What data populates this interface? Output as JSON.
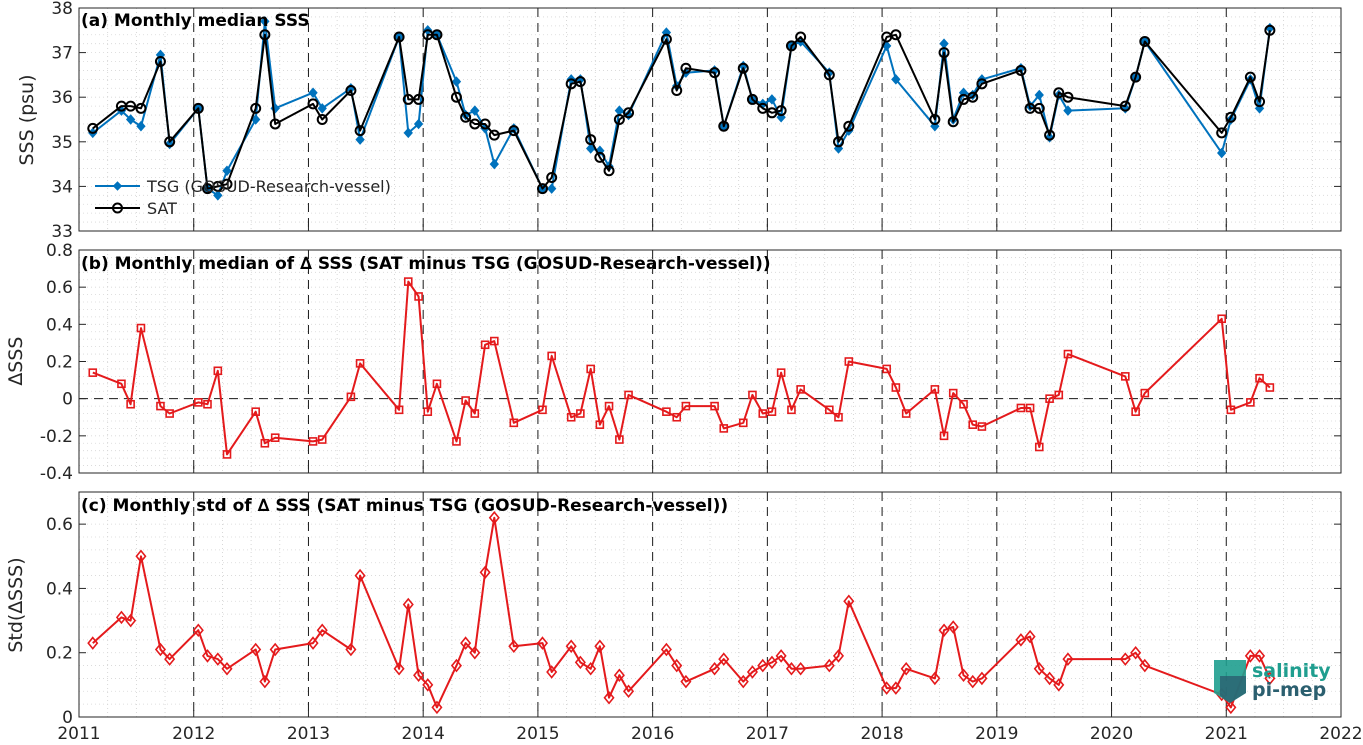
{
  "chart_data": [
    {
      "type": "line",
      "title": "(a) Monthly median SSS",
      "ylabel": "SSS (psu)",
      "ylim": [
        33,
        38
      ],
      "yticks": [
        33,
        34,
        35,
        36,
        37,
        38
      ],
      "xlim": [
        2011,
        2022
      ],
      "xticks": [
        2011,
        2012,
        2013,
        2014,
        2015,
        2016,
        2017,
        2018,
        2019,
        2020,
        2021,
        2022
      ],
      "grid": "dotted minor",
      "legend_position": "lower-left",
      "series": [
        {
          "name": "TSG (GOSUD-Research-vessel)",
          "color": "#0072bd",
          "marker": "diamond-filled",
          "x": [
            2011.12,
            2011.37,
            2011.45,
            2011.54,
            2011.71,
            2011.79,
            2012.04,
            2012.12,
            2012.21,
            2012.29,
            2012.54,
            2012.62,
            2012.71,
            2013.04,
            2013.12,
            2013.37,
            2013.45,
            2013.79,
            2013.87,
            2013.96,
            2014.04,
            2014.12,
            2014.29,
            2014.37,
            2014.45,
            2014.54,
            2014.62,
            2014.79,
            2015.04,
            2015.12,
            2015.29,
            2015.37,
            2015.46,
            2015.54,
            2015.62,
            2015.71,
            2015.79,
            2016.12,
            2016.21,
            2016.29,
            2016.54,
            2016.62,
            2016.79,
            2016.87,
            2016.96,
            2017.04,
            2017.12,
            2017.21,
            2017.29,
            2017.54,
            2017.62,
            2017.71,
            2018.04,
            2018.12,
            2018.46,
            2018.54,
            2018.62,
            2018.71,
            2018.79,
            2018.87,
            2019.21,
            2019.29,
            2019.37,
            2019.46,
            2019.54,
            2019.62,
            2020.12,
            2020.21,
            2020.29,
            2020.96,
            2021.04,
            2021.21,
            2021.29,
            2021.38
          ],
          "values": [
            35.2,
            35.7,
            35.5,
            35.35,
            36.95,
            34.95,
            35.75,
            33.95,
            33.8,
            34.35,
            35.5,
            37.7,
            35.75,
            36.1,
            35.75,
            36.2,
            35.05,
            37.35,
            35.2,
            35.4,
            37.5,
            37.4,
            36.35,
            35.6,
            35.7,
            35.3,
            34.5,
            35.3,
            33.95,
            33.95,
            36.4,
            36.4,
            34.85,
            34.8,
            34.45,
            35.7,
            35.6,
            37.45,
            36.25,
            36.55,
            36.6,
            35.35,
            36.7,
            35.95,
            35.85,
            35.95,
            35.55,
            37.15,
            37.25,
            36.55,
            34.85,
            35.25,
            37.15,
            36.4,
            35.35,
            37.2,
            35.5,
            36.1,
            36.05,
            36.4,
            36.65,
            35.8,
            36.05,
            35.1,
            36.05,
            35.7,
            35.75,
            36.45,
            37.25,
            34.75,
            35.5,
            36.4,
            35.75,
            37.55
          ]
        },
        {
          "name": "SAT",
          "color": "#000000",
          "marker": "circle-open",
          "x": [
            2011.12,
            2011.37,
            2011.45,
            2011.54,
            2011.71,
            2011.79,
            2012.04,
            2012.12,
            2012.21,
            2012.29,
            2012.54,
            2012.62,
            2012.71,
            2013.04,
            2013.12,
            2013.37,
            2013.45,
            2013.79,
            2013.87,
            2013.96,
            2014.04,
            2014.12,
            2014.29,
            2014.37,
            2014.45,
            2014.54,
            2014.62,
            2014.79,
            2015.04,
            2015.12,
            2015.29,
            2015.37,
            2015.46,
            2015.54,
            2015.62,
            2015.71,
            2015.79,
            2016.12,
            2016.21,
            2016.29,
            2016.54,
            2016.62,
            2016.79,
            2016.87,
            2016.96,
            2017.04,
            2017.12,
            2017.21,
            2017.29,
            2017.54,
            2017.62,
            2017.71,
            2018.04,
            2018.12,
            2018.46,
            2018.54,
            2018.62,
            2018.71,
            2018.79,
            2018.87,
            2019.21,
            2019.29,
            2019.37,
            2019.46,
            2019.54,
            2019.62,
            2020.12,
            2020.21,
            2020.29,
            2020.96,
            2021.04,
            2021.21,
            2021.29,
            2021.38
          ],
          "values": [
            35.3,
            35.8,
            35.8,
            35.75,
            36.8,
            35.0,
            35.75,
            33.95,
            34.0,
            34.05,
            35.75,
            37.4,
            35.4,
            35.85,
            35.5,
            36.15,
            35.25,
            37.35,
            35.95,
            35.95,
            37.4,
            37.4,
            36.0,
            35.55,
            35.4,
            35.4,
            35.15,
            35.25,
            33.95,
            34.2,
            36.3,
            36.35,
            35.05,
            34.65,
            34.35,
            35.5,
            35.65,
            37.3,
            36.15,
            36.65,
            36.55,
            35.35,
            36.65,
            35.95,
            35.75,
            35.65,
            35.7,
            37.15,
            37.35,
            36.5,
            35.0,
            35.35,
            37.35,
            37.4,
            35.5,
            37.0,
            35.45,
            35.95,
            36.0,
            36.3,
            36.6,
            35.75,
            35.75,
            35.15,
            36.1,
            36.0,
            35.8,
            36.45,
            37.25,
            35.2,
            35.55,
            36.45,
            35.9,
            37.5
          ]
        }
      ]
    },
    {
      "type": "line",
      "title": "(b) Monthly median of ∆ SSS (SAT minus TSG (GOSUD-Research-vessel))",
      "ylabel": "∆SSS",
      "ylim": [
        -0.4,
        0.8
      ],
      "yticks": [
        -0.4,
        -0.2,
        0,
        0.2,
        0.4,
        0.6,
        0.8
      ],
      "xlim": [
        2011,
        2022
      ],
      "reference_line": 0,
      "series": [
        {
          "color": "#e41a1c",
          "marker": "square-open",
          "x": [
            2011.12,
            2011.37,
            2011.45,
            2011.54,
            2011.71,
            2011.79,
            2012.04,
            2012.12,
            2012.21,
            2012.29,
            2012.54,
            2012.62,
            2012.71,
            2013.04,
            2013.12,
            2013.37,
            2013.45,
            2013.79,
            2013.87,
            2013.96,
            2014.04,
            2014.12,
            2014.29,
            2014.37,
            2014.45,
            2014.54,
            2014.62,
            2014.79,
            2015.04,
            2015.12,
            2015.29,
            2015.37,
            2015.46,
            2015.54,
            2015.62,
            2015.71,
            2015.79,
            2016.12,
            2016.21,
            2016.29,
            2016.54,
            2016.62,
            2016.79,
            2016.87,
            2016.96,
            2017.04,
            2017.12,
            2017.21,
            2017.29,
            2017.54,
            2017.62,
            2017.71,
            2018.04,
            2018.12,
            2018.21,
            2018.46,
            2018.54,
            2018.62,
            2018.71,
            2018.79,
            2018.87,
            2019.21,
            2019.29,
            2019.37,
            2019.46,
            2019.54,
            2019.62,
            2020.12,
            2020.21,
            2020.29,
            2020.96,
            2021.04,
            2021.21,
            2021.29,
            2021.38
          ],
          "values": [
            0.14,
            0.08,
            -0.03,
            0.38,
            -0.04,
            -0.08,
            -0.02,
            -0.03,
            0.15,
            -0.3,
            -0.07,
            -0.24,
            -0.21,
            -0.23,
            -0.22,
            0.01,
            0.19,
            -0.06,
            0.63,
            0.55,
            -0.07,
            0.08,
            -0.23,
            -0.01,
            -0.08,
            0.29,
            0.31,
            -0.13,
            -0.06,
            0.23,
            -0.1,
            -0.08,
            0.16,
            -0.14,
            -0.04,
            -0.22,
            0.02,
            -0.07,
            -0.1,
            -0.04,
            -0.04,
            -0.16,
            -0.13,
            0.02,
            -0.08,
            -0.07,
            0.14,
            -0.06,
            0.05,
            -0.06,
            -0.1,
            0.2,
            0.16,
            0.06,
            -0.08,
            0.05,
            -0.2,
            0.03,
            -0.03,
            -0.14,
            -0.15,
            -0.05,
            -0.05,
            -0.26,
            0.0,
            0.02,
            0.24,
            0.12,
            -0.07,
            0.03,
            0.43,
            -0.06,
            -0.02,
            0.11,
            0.06
          ]
        }
      ]
    },
    {
      "type": "line",
      "title": "(c) Monthly std of ∆ SSS (SAT minus TSG (GOSUD-Research-vessel))",
      "ylabel": "Std(∆SSS)",
      "ylim": [
        0,
        0.7
      ],
      "yticks": [
        0,
        0.2,
        0.4,
        0.6
      ],
      "xlim": [
        2011,
        2022
      ],
      "xticks": [
        2011,
        2012,
        2013,
        2014,
        2015,
        2016,
        2017,
        2018,
        2019,
        2020,
        2021,
        2022
      ],
      "series": [
        {
          "color": "#e41a1c",
          "marker": "diamond-open",
          "x": [
            2011.12,
            2011.37,
            2011.45,
            2011.54,
            2011.71,
            2011.79,
            2012.04,
            2012.12,
            2012.21,
            2012.29,
            2012.54,
            2012.62,
            2012.71,
            2013.04,
            2013.12,
            2013.37,
            2013.45,
            2013.79,
            2013.87,
            2013.96,
            2014.04,
            2014.12,
            2014.29,
            2014.37,
            2014.45,
            2014.54,
            2014.62,
            2014.79,
            2015.04,
            2015.12,
            2015.29,
            2015.37,
            2015.46,
            2015.54,
            2015.62,
            2015.71,
            2015.79,
            2016.12,
            2016.21,
            2016.29,
            2016.54,
            2016.62,
            2016.79,
            2016.87,
            2016.96,
            2017.04,
            2017.12,
            2017.21,
            2017.29,
            2017.54,
            2017.62,
            2017.71,
            2018.04,
            2018.12,
            2018.21,
            2018.46,
            2018.54,
            2018.62,
            2018.71,
            2018.79,
            2018.87,
            2019.21,
            2019.29,
            2019.37,
            2019.46,
            2019.54,
            2019.62,
            2020.12,
            2020.21,
            2020.29,
            2020.96,
            2021.04,
            2021.21,
            2021.29,
            2021.38
          ],
          "values": [
            0.23,
            0.31,
            0.3,
            0.5,
            0.21,
            0.18,
            0.27,
            0.19,
            0.18,
            0.15,
            0.21,
            0.11,
            0.21,
            0.23,
            0.27,
            0.21,
            0.44,
            0.15,
            0.35,
            0.13,
            0.1,
            0.03,
            0.16,
            0.23,
            0.2,
            0.45,
            0.62,
            0.22,
            0.23,
            0.14,
            0.22,
            0.17,
            0.15,
            0.22,
            0.06,
            0.13,
            0.08,
            0.21,
            0.16,
            0.11,
            0.15,
            0.18,
            0.11,
            0.14,
            0.16,
            0.17,
            0.19,
            0.15,
            0.15,
            0.16,
            0.19,
            0.36,
            0.09,
            0.09,
            0.15,
            0.12,
            0.27,
            0.28,
            0.13,
            0.11,
            0.12,
            0.24,
            0.25,
            0.15,
            0.12,
            0.1,
            0.18,
            0.18,
            0.2,
            0.16,
            0.07,
            0.03,
            0.19,
            0.19,
            0.12
          ]
        }
      ]
    }
  ],
  "logo": {
    "line1": "salinity",
    "line2": "pi-mep",
    "color_primary": "#1f9e8f",
    "color_secondary": "#2b5f6f"
  }
}
